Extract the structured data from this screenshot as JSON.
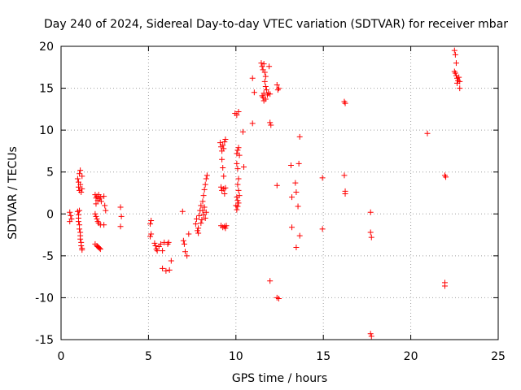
{
  "chart_data": {
    "type": "scatter",
    "title": "Day 240 of 2024, Sidereal Day-to-day VTEC variation (SDTVAR) for receiver mbar",
    "xlabel": "GPS time / hours",
    "ylabel": "SDTVAR / TECUs",
    "xlim": [
      0,
      25
    ],
    "ylim": [
      -15,
      20
    ],
    "xticks": [
      0,
      5,
      10,
      15,
      20,
      25
    ],
    "yticks": [
      -15,
      -10,
      -5,
      0,
      5,
      10,
      15,
      20
    ],
    "xtick_labels": [
      "0",
      "5",
      "10",
      "15",
      "20",
      "25"
    ],
    "ytick_labels": [
      "-15",
      "-10",
      "-5",
      "0",
      "5",
      "10",
      "15",
      "20"
    ],
    "grid": true,
    "marker": "+",
    "marker_color": "#ff0000",
    "series": [
      {
        "name": "SDTVAR",
        "points": [
          [
            0.5,
            0.2
          ],
          [
            0.55,
            -0.2
          ],
          [
            0.6,
            -0.6
          ],
          [
            0.5,
            -0.9
          ],
          [
            0.95,
            4.2
          ],
          [
            1.0,
            3.8
          ],
          [
            1.0,
            3.2
          ],
          [
            1.05,
            2.8
          ],
          [
            1.05,
            4.8
          ],
          [
            1.1,
            5.2
          ],
          [
            1.1,
            3.5
          ],
          [
            1.15,
            2.6
          ],
          [
            1.2,
            3.0
          ],
          [
            1.2,
            4.5
          ],
          [
            0.95,
            0.3
          ],
          [
            1.0,
            -0.1
          ],
          [
            1.0,
            -0.5
          ],
          [
            1.0,
            -0.9
          ],
          [
            1.05,
            -1.3
          ],
          [
            1.05,
            -1.8
          ],
          [
            1.1,
            -2.2
          ],
          [
            1.1,
            -2.6
          ],
          [
            1.1,
            -3.0
          ],
          [
            1.15,
            -3.4
          ],
          [
            1.15,
            -3.8
          ],
          [
            1.2,
            -4.1
          ],
          [
            1.2,
            -4.3
          ],
          [
            1.05,
            0.4
          ],
          [
            1.95,
            2.3
          ],
          [
            2.0,
            1.9
          ],
          [
            2.05,
            2.1
          ],
          [
            2.1,
            1.6
          ],
          [
            2.15,
            2.3
          ],
          [
            2.2,
            1.8
          ],
          [
            2.25,
            2.0
          ],
          [
            2.3,
            1.5
          ],
          [
            2.0,
            1.2
          ],
          [
            1.95,
            0.0
          ],
          [
            2.0,
            -0.3
          ],
          [
            2.05,
            -0.6
          ],
          [
            2.1,
            -0.9
          ],
          [
            2.15,
            -1.1
          ],
          [
            2.25,
            -1.3
          ],
          [
            1.95,
            -3.6
          ],
          [
            2.05,
            -3.8
          ],
          [
            2.1,
            -3.9
          ],
          [
            2.15,
            -4.0
          ],
          [
            2.2,
            -4.1
          ],
          [
            2.25,
            -4.2
          ],
          [
            2.45,
            2.1
          ],
          [
            2.5,
            1.0
          ],
          [
            2.55,
            0.4
          ],
          [
            2.45,
            -1.3
          ],
          [
            3.4,
            0.8
          ],
          [
            3.45,
            -0.3
          ],
          [
            3.4,
            -1.5
          ],
          [
            5.1,
            -1.2
          ],
          [
            5.15,
            -0.8
          ],
          [
            5.15,
            -2.4
          ],
          [
            5.1,
            -2.7
          ],
          [
            5.35,
            -3.5
          ],
          [
            5.4,
            -3.8
          ],
          [
            5.45,
            -4.2
          ],
          [
            5.5,
            -4.4
          ],
          [
            5.6,
            -3.9
          ],
          [
            5.7,
            -3.6
          ],
          [
            5.8,
            -4.4
          ],
          [
            5.9,
            -3.4
          ],
          [
            6.1,
            -3.6
          ],
          [
            6.15,
            -3.4
          ],
          [
            5.8,
            -6.5
          ],
          [
            6.0,
            -6.8
          ],
          [
            6.2,
            -6.7
          ],
          [
            6.3,
            -5.6
          ],
          [
            6.95,
            0.3
          ],
          [
            7.0,
            -3.2
          ],
          [
            7.05,
            -3.6
          ],
          [
            7.1,
            -4.5
          ],
          [
            7.2,
            -5.0
          ],
          [
            7.3,
            -2.4
          ],
          [
            7.7,
            -1.2
          ],
          [
            7.75,
            -0.6
          ],
          [
            7.8,
            -2.0
          ],
          [
            7.85,
            -1.7
          ],
          [
            7.9,
            -0.2
          ],
          [
            7.95,
            0.4
          ],
          [
            8.0,
            1.0
          ],
          [
            8.05,
            -0.7
          ],
          [
            8.1,
            1.5
          ],
          [
            8.15,
            2.2
          ],
          [
            8.2,
            2.9
          ],
          [
            8.25,
            3.5
          ],
          [
            8.3,
            4.2
          ],
          [
            8.35,
            4.6
          ],
          [
            8.15,
            -0.1
          ],
          [
            8.2,
            0.8
          ],
          [
            8.25,
            -0.5
          ],
          [
            8.3,
            0.2
          ],
          [
            7.85,
            -2.3
          ],
          [
            8.0,
            -1.1
          ],
          [
            8.1,
            0.4
          ],
          [
            9.1,
            8.5
          ],
          [
            9.15,
            8.0
          ],
          [
            9.2,
            7.5
          ],
          [
            9.25,
            8.2
          ],
          [
            9.3,
            7.8
          ],
          [
            9.35,
            8.6
          ],
          [
            9.4,
            8.9
          ],
          [
            9.2,
            6.5
          ],
          [
            9.25,
            5.5
          ],
          [
            9.3,
            4.5
          ],
          [
            9.15,
            3.2
          ],
          [
            9.2,
            2.8
          ],
          [
            9.3,
            3.0
          ],
          [
            9.35,
            2.4
          ],
          [
            9.4,
            3.1
          ],
          [
            9.15,
            -1.4
          ],
          [
            9.25,
            -1.6
          ],
          [
            9.35,
            -1.5
          ],
          [
            9.4,
            -1.7
          ],
          [
            9.45,
            -1.4
          ],
          [
            9.95,
            12.0
          ],
          [
            10.05,
            11.8
          ],
          [
            10.15,
            12.2
          ],
          [
            10.05,
            7.2
          ],
          [
            10.1,
            7.6
          ],
          [
            10.15,
            7.9
          ],
          [
            10.2,
            7.0
          ],
          [
            10.05,
            6.0
          ],
          [
            10.1,
            5.4
          ],
          [
            10.15,
            4.2
          ],
          [
            10.1,
            3.5
          ],
          [
            10.15,
            2.8
          ],
          [
            10.2,
            2.2
          ],
          [
            10.05,
            2.0
          ],
          [
            10.1,
            1.6
          ],
          [
            10.0,
            1.0
          ],
          [
            10.05,
            0.5
          ],
          [
            10.1,
            0.9
          ],
          [
            10.15,
            1.3
          ],
          [
            10.4,
            9.8
          ],
          [
            10.45,
            5.6
          ],
          [
            10.95,
            16.2
          ],
          [
            10.95,
            10.8
          ],
          [
            11.05,
            14.5
          ],
          [
            11.45,
            18.0
          ],
          [
            11.5,
            17.6
          ],
          [
            11.55,
            17.2
          ],
          [
            11.6,
            17.9
          ],
          [
            11.65,
            16.9
          ],
          [
            11.7,
            16.4
          ],
          [
            11.65,
            15.8
          ],
          [
            11.7,
            15.2
          ],
          [
            11.75,
            14.8
          ],
          [
            11.6,
            14.4
          ],
          [
            11.5,
            14.1
          ],
          [
            11.55,
            13.9
          ],
          [
            11.6,
            13.5
          ],
          [
            11.7,
            13.7
          ],
          [
            11.8,
            14.2
          ],
          [
            11.85,
            14.4
          ],
          [
            11.9,
            17.6
          ],
          [
            11.95,
            14.3
          ],
          [
            11.95,
            10.9
          ],
          [
            12.0,
            10.6
          ],
          [
            11.95,
            -8.0
          ],
          [
            12.35,
            15.4
          ],
          [
            12.4,
            14.8
          ],
          [
            12.45,
            15.0
          ],
          [
            12.35,
            3.4
          ],
          [
            12.35,
            -10.0
          ],
          [
            12.45,
            -10.1
          ],
          [
            13.15,
            5.8
          ],
          [
            13.2,
            2.0
          ],
          [
            13.2,
            -1.6
          ],
          [
            13.4,
            3.7
          ],
          [
            13.45,
            2.6
          ],
          [
            13.45,
            -4.0
          ],
          [
            13.6,
            6.0
          ],
          [
            13.65,
            9.2
          ],
          [
            13.55,
            0.9
          ],
          [
            13.65,
            -2.6
          ],
          [
            14.95,
            4.3
          ],
          [
            14.95,
            -1.8
          ],
          [
            16.2,
            13.4
          ],
          [
            16.25,
            13.2
          ],
          [
            16.2,
            4.6
          ],
          [
            16.25,
            2.7
          ],
          [
            16.25,
            2.4
          ],
          [
            17.7,
            0.2
          ],
          [
            17.7,
            -2.2
          ],
          [
            17.75,
            -2.8
          ],
          [
            17.7,
            -14.3
          ],
          [
            17.75,
            -14.6
          ],
          [
            20.95,
            9.6
          ],
          [
            21.95,
            4.6
          ],
          [
            22.0,
            4.4
          ],
          [
            21.95,
            -8.2
          ],
          [
            21.95,
            -8.6
          ],
          [
            22.5,
            19.5
          ],
          [
            22.55,
            19.0
          ],
          [
            22.6,
            18.0
          ],
          [
            22.5,
            17.0
          ],
          [
            22.55,
            16.8
          ],
          [
            22.6,
            16.5
          ],
          [
            22.65,
            16.2
          ],
          [
            22.7,
            15.9
          ],
          [
            22.75,
            16.3
          ],
          [
            22.8,
            15.8
          ],
          [
            22.8,
            15.0
          ],
          [
            22.65,
            15.6
          ]
        ]
      }
    ]
  }
}
